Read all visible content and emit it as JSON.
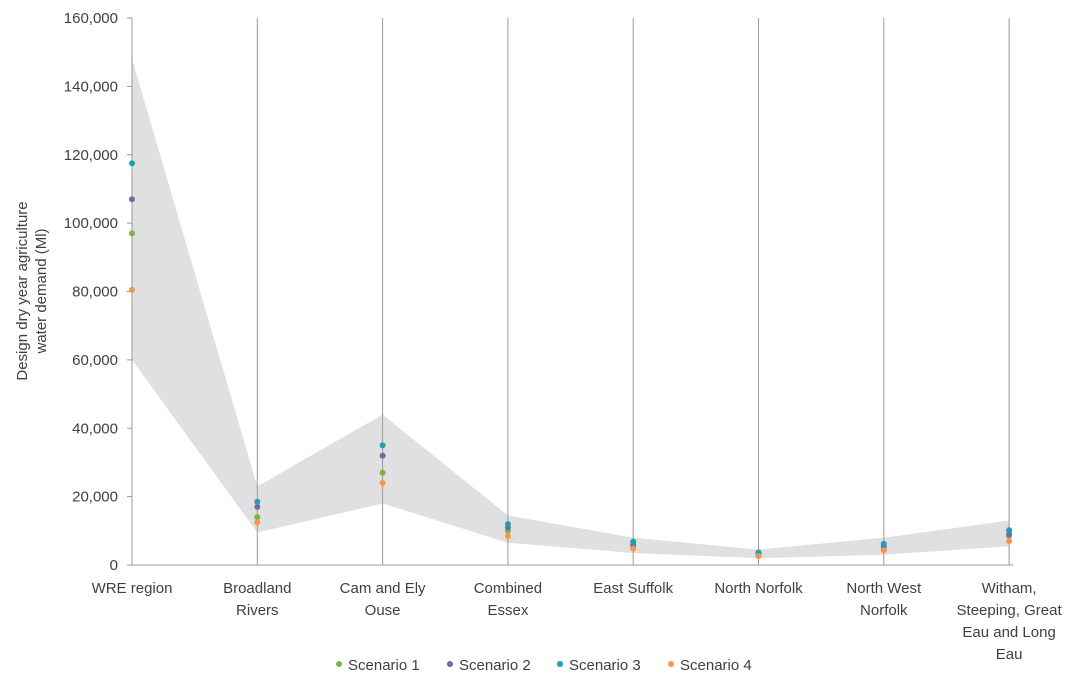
{
  "chart_data": {
    "type": "scatter",
    "title": "",
    "ylabel_lines": [
      "Design dry year agriculture",
      "water demand (Ml)"
    ],
    "ylim": [
      0,
      160000
    ],
    "yticks": [
      "0",
      "20,000",
      "40,000",
      "60,000",
      "80,000",
      "100,000",
      "120,000",
      "140,000",
      "160,000"
    ],
    "ytick_values": [
      0,
      20000,
      40000,
      60000,
      80000,
      100000,
      120000,
      140000,
      160000
    ],
    "grid": "vertical lines at each category",
    "categories": [
      [
        "WRE region"
      ],
      [
        "Broadland",
        "Rivers"
      ],
      [
        "Cam and Ely",
        "Ouse"
      ],
      [
        "Combined",
        "Essex"
      ],
      [
        "East Suffolk"
      ],
      [
        "North Norfolk"
      ],
      [
        "North West",
        "Norfolk"
      ],
      [
        "Witham,",
        "Steeping, Great",
        "Eau and Long",
        "Eau"
      ]
    ],
    "range_band": {
      "color": "#e0e0e0",
      "upper": [
        148000,
        23000,
        44000,
        14500,
        8000,
        4500,
        8000,
        13000
      ],
      "lower": [
        60000,
        9500,
        18000,
        6500,
        3500,
        2000,
        3000,
        5500
      ]
    },
    "series": [
      {
        "name": "Scenario 1",
        "color": "#7cb342",
        "values": [
          97000,
          14000,
          27000,
          10000,
          5500,
          3000,
          5000,
          8500
        ]
      },
      {
        "name": "Scenario 2",
        "color": "#8064a2",
        "values": [
          107000,
          17000,
          32000,
          11000,
          6000,
          3300,
          5500,
          9000
        ]
      },
      {
        "name": "Scenario 3",
        "color": "#17a2b8",
        "values": [
          117500,
          18500,
          35000,
          12000,
          6800,
          3700,
          6200,
          10200
        ]
      },
      {
        "name": "Scenario 4",
        "color": "#f79646",
        "values": [
          80500,
          12500,
          24000,
          8500,
          4800,
          2600,
          4300,
          7000
        ]
      }
    ],
    "legend": "bottom-center"
  }
}
